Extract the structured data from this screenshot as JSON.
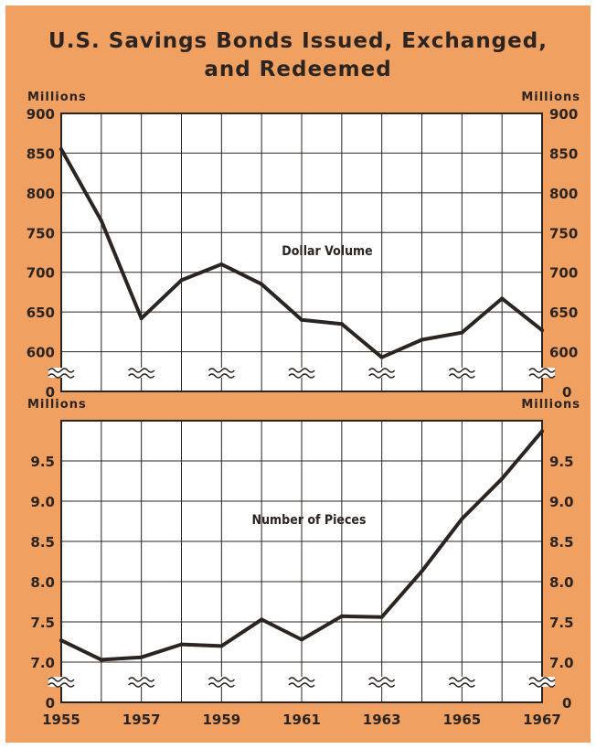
{
  "title_line1": "U.S. Savings Bonds Issued, Exchanged,",
  "title_line2": "and Redeemed",
  "colors": {
    "background": "#f0a060",
    "panel": "#ffffff",
    "line": "#2b2420"
  },
  "chart_data": [
    {
      "type": "line",
      "series": [
        {
          "name": "Dollar Volume",
          "values": [
            855,
            765,
            642,
            690,
            710,
            685,
            640,
            635,
            593,
            615,
            624,
            667,
            627
          ]
        }
      ],
      "x": [
        1955,
        1956,
        1957,
        1958,
        1959,
        1960,
        1961,
        1962,
        1963,
        1964,
        1965,
        1966,
        1967
      ],
      "ylabel_left": "Millions",
      "ylabel_right": "Millions",
      "ylim": [
        550,
        900
      ],
      "yticks": [
        "600",
        "650",
        "700",
        "750",
        "800",
        "850",
        "900"
      ],
      "baseline_tick": "0",
      "axis_break": true,
      "grid": true
    },
    {
      "type": "line",
      "series": [
        {
          "name": "Number of Pieces",
          "values": [
            7.27,
            7.03,
            7.06,
            7.22,
            7.2,
            7.53,
            7.28,
            7.57,
            7.56,
            8.13,
            8.78,
            9.28,
            9.87
          ]
        }
      ],
      "x": [
        1955,
        1956,
        1957,
        1958,
        1959,
        1960,
        1961,
        1962,
        1963,
        1964,
        1965,
        1966,
        1967
      ],
      "ylabel_left": "Millions",
      "ylabel_right": "Millions",
      "ylim": [
        6.5,
        10.0
      ],
      "yticks": [
        "7.0",
        "7.5",
        "8.0",
        "8.5",
        "9.0",
        "9.5"
      ],
      "baseline_tick": "0",
      "axis_break": true,
      "grid": true
    }
  ],
  "xtick_labels": [
    "1955",
    "1957",
    "1959",
    "1961",
    "1963",
    "1965",
    "1967"
  ]
}
